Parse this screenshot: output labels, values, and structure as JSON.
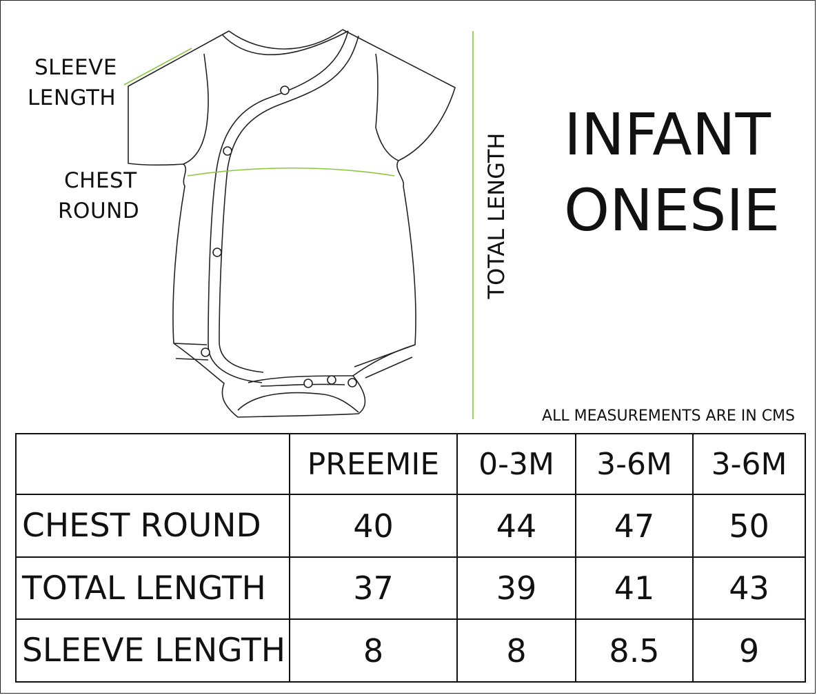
{
  "diagram": {
    "sleeve_label_line1": "SLEEVE",
    "sleeve_label_line2": "LENGTH",
    "chest_label_line1": "CHEST",
    "chest_label_line2": "ROUND",
    "total_length_label": "TOTAL LENGTH",
    "line_color": "#8dc63f"
  },
  "title": {
    "line1": "INFANT",
    "line2": "ONESIE"
  },
  "note": "ALL MEASUREMENTS ARE IN CMS",
  "table": {
    "headers": [
      "",
      "PREEMIE",
      "0-3M",
      "3-6M",
      "3-6M"
    ],
    "rows": [
      {
        "label": "CHEST ROUND",
        "values": [
          "40",
          "44",
          "47",
          "50"
        ]
      },
      {
        "label": "TOTAL LENGTH",
        "values": [
          "37",
          "39",
          "41",
          "43"
        ]
      },
      {
        "label": "SLEEVE LENGTH",
        "values": [
          "8",
          "8",
          "8.5",
          "9"
        ]
      }
    ]
  }
}
